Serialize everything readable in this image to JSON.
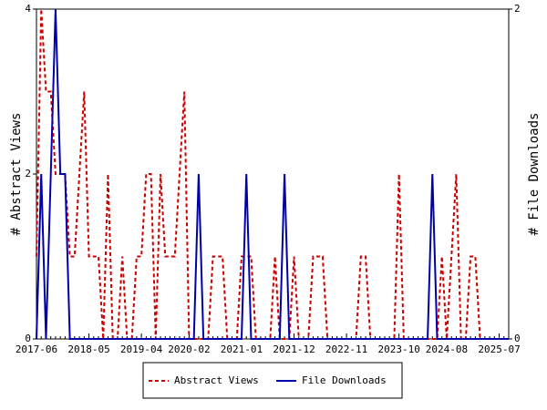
{
  "chart_data": {
    "type": "line",
    "ylabel": "# Abstract Views",
    "y2label": "# File Downloads",
    "categories": [
      "2017-06",
      null,
      null,
      null,
      null,
      null,
      null,
      null,
      null,
      null,
      null,
      "2018-05",
      null,
      null,
      null,
      null,
      null,
      null,
      null,
      null,
      null,
      null,
      "2019-04",
      null,
      null,
      null,
      null,
      null,
      null,
      null,
      null,
      null,
      "2020-02",
      null,
      null,
      null,
      null,
      null,
      null,
      null,
      null,
      null,
      null,
      "2021-01",
      null,
      null,
      null,
      null,
      null,
      null,
      null,
      null,
      null,
      null,
      "2021-12",
      null,
      null,
      null,
      null,
      null,
      null,
      null,
      null,
      null,
      null,
      "2022-11",
      null,
      null,
      null,
      null,
      null,
      null,
      null,
      null,
      null,
      null,
      "2023-10",
      null,
      null,
      null,
      null,
      null,
      null,
      null,
      null,
      null,
      "2024-08",
      null,
      null,
      null,
      null,
      null,
      null,
      null,
      null,
      null,
      null,
      "2025-07",
      null,
      null
    ],
    "series": [
      {
        "name": "Abstract Views",
        "color": "#cc0000",
        "dash": true,
        "axis": "y",
        "values": [
          1,
          4,
          3,
          3,
          2,
          2,
          2,
          1,
          1,
          2,
          3,
          1,
          1,
          1,
          0,
          2,
          0,
          0,
          1,
          0,
          0,
          1,
          1,
          2,
          2,
          0,
          2,
          1,
          1,
          1,
          2,
          3,
          0,
          0,
          0,
          0,
          0,
          1,
          1,
          1,
          0,
          0,
          0,
          1,
          1,
          1,
          0,
          0,
          0,
          0,
          1,
          0,
          0,
          0,
          1,
          0,
          0,
          0,
          1,
          1,
          1,
          0,
          0,
          0,
          0,
          0,
          0,
          0,
          1,
          1,
          0,
          0,
          0,
          0,
          0,
          0,
          2,
          0,
          0,
          0,
          0,
          0,
          0,
          0,
          0,
          1,
          0,
          1,
          2,
          0,
          0,
          1,
          1,
          0,
          0,
          0,
          0,
          0,
          0,
          0
        ]
      },
      {
        "name": "File Downloads",
        "color": "#0000aa",
        "dash": false,
        "axis": "y2",
        "values": [
          0,
          1,
          0,
          1,
          2,
          1,
          1,
          0,
          0,
          0,
          0,
          0,
          0,
          0,
          0,
          0,
          0,
          0,
          0,
          0,
          0,
          0,
          0,
          0,
          0,
          0,
          0,
          0,
          0,
          0,
          0,
          0,
          0,
          0,
          1,
          0,
          0,
          0,
          0,
          0,
          0,
          0,
          0,
          0,
          1,
          0,
          0,
          0,
          0,
          0,
          0,
          0,
          1,
          0,
          0,
          0,
          0,
          0,
          0,
          0,
          0,
          0,
          0,
          0,
          0,
          0,
          0,
          0,
          0,
          0,
          0,
          0,
          0,
          0,
          0,
          0,
          0,
          0,
          0,
          0,
          0,
          0,
          0,
          1,
          0,
          0,
          0,
          0,
          0,
          0,
          0,
          0,
          0,
          0,
          0,
          0,
          0,
          0,
          0,
          0
        ]
      }
    ],
    "ylim": [
      0,
      4
    ],
    "yticks": [
      0,
      2,
      4
    ],
    "y2lim": [
      0,
      2
    ],
    "y2ticks": [
      0,
      2
    ],
    "legend": "bottom"
  }
}
